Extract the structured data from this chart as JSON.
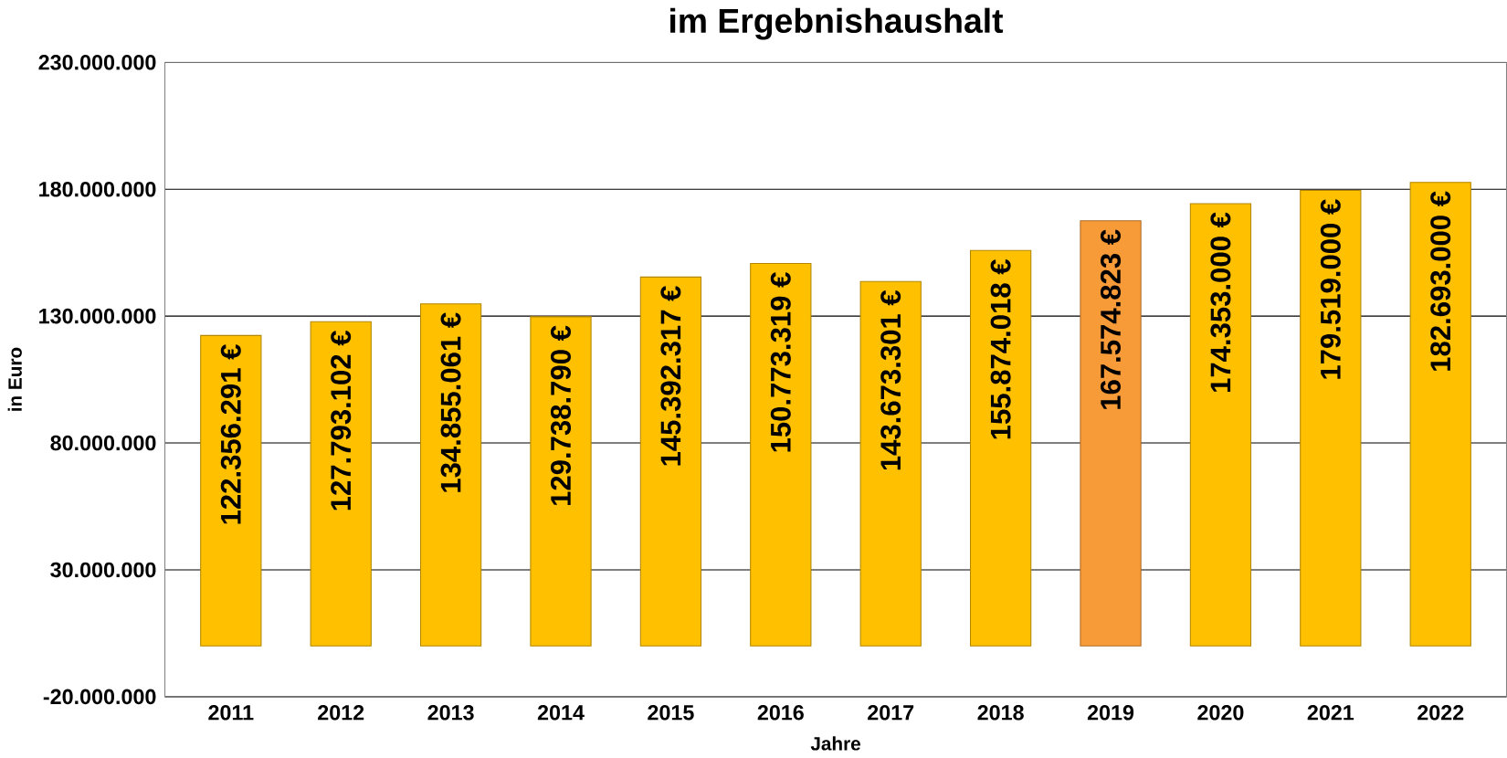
{
  "chart_data": {
    "type": "bar",
    "title": "im Ergebnishaushalt",
    "xlabel": "Jahre",
    "ylabel": "in Euro",
    "categories": [
      "2011",
      "2012",
      "2013",
      "2014",
      "2015",
      "2016",
      "2017",
      "2018",
      "2019",
      "2020",
      "2021",
      "2022"
    ],
    "values": [
      122356291,
      127793102,
      134855061,
      129738790,
      145392317,
      150773319,
      143673301,
      155874018,
      167574823,
      174353000,
      179519000,
      182693000
    ],
    "colors": [
      "#ffc000",
      "#ffc000",
      "#ffc000",
      "#ffc000",
      "#ffc000",
      "#ffc000",
      "#ffc000",
      "#ffc000",
      "#f79a38",
      "#ffc000",
      "#ffc000",
      "#ffc000"
    ],
    "value_labels": [
      "122.356.291 €",
      "127.793.102 €",
      "134.855.061 €",
      "129.738.790 €",
      "145.392.317 €",
      "150.773.319 €",
      "143.673.301 €",
      "155.874.018 €",
      "167.574.823 €",
      "174.353.000 €",
      "179.519.000 €",
      "182.693.000 €"
    ],
    "ylim": [
      -20000000,
      230000000
    ],
    "yticks": [
      {
        "value": -20000000,
        "label": "-20.000.000"
      },
      {
        "value": 30000000,
        "label": "30.000.000"
      },
      {
        "value": 80000000,
        "label": "80.000.000"
      },
      {
        "value": 130000000,
        "label": "130.000.000"
      },
      {
        "value": 180000000,
        "label": "180.000.000"
      },
      {
        "value": 230000000,
        "label": "230.000.000"
      }
    ],
    "grid": "y"
  }
}
